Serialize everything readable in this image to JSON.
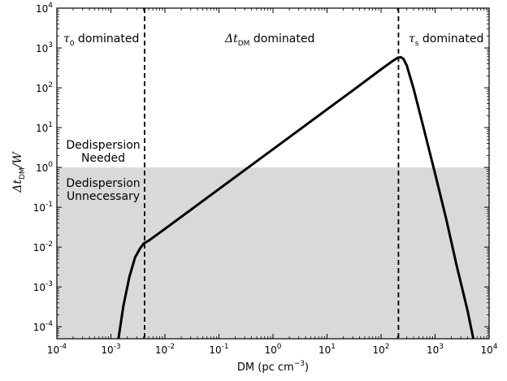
{
  "chart_data": {
    "type": "line",
    "xlabel": "DM (pc cm",
    "xlabel_sup": "−3",
    "xlabel_close": ")",
    "ylabel": "Δt",
    "ylabel_sub": "DM",
    "ylabel_tail": "/W",
    "x_scale": "log",
    "y_scale": "log",
    "xlim": [
      0.0001,
      10000
    ],
    "ylim": [
      5e-05,
      10000
    ],
    "x_ticks": [
      {
        "base": "10",
        "exp": "-4",
        "value": 0.0001
      },
      {
        "base": "10",
        "exp": "-3",
        "value": 0.001
      },
      {
        "base": "10",
        "exp": "-2",
        "value": 0.01
      },
      {
        "base": "10",
        "exp": "-1",
        "value": 0.1
      },
      {
        "base": "10",
        "exp": "0",
        "value": 1
      },
      {
        "base": "10",
        "exp": "1",
        "value": 10
      },
      {
        "base": "10",
        "exp": "2",
        "value": 100
      },
      {
        "base": "10",
        "exp": "3",
        "value": 1000
      },
      {
        "base": "10",
        "exp": "4",
        "value": 10000
      }
    ],
    "y_ticks": [
      {
        "base": "10",
        "exp": "-4",
        "value": 0.0001
      },
      {
        "base": "10",
        "exp": "-3",
        "value": 0.001
      },
      {
        "base": "10",
        "exp": "-2",
        "value": 0.01
      },
      {
        "base": "10",
        "exp": "-1",
        "value": 0.1
      },
      {
        "base": "10",
        "exp": "0",
        "value": 1
      },
      {
        "base": "10",
        "exp": "1",
        "value": 10
      },
      {
        "base": "10",
        "exp": "2",
        "value": 100
      },
      {
        "base": "10",
        "exp": "3",
        "value": 1000
      },
      {
        "base": "10",
        "exp": "4",
        "value": 10000
      }
    ],
    "series": [
      {
        "color": "#000000",
        "x": [
          0.00138,
          0.0017,
          0.0022,
          0.0028,
          0.0035,
          0.0041,
          0.005,
          0.008,
          0.03,
          0.3,
          3,
          30,
          100,
          160,
          200,
          230,
          260,
          300,
          400,
          600,
          1000,
          1600,
          2500,
          4000,
          5100
        ],
        "y": [
          5e-05,
          0.00033,
          0.0018,
          0.0055,
          0.0095,
          0.0125,
          0.0145,
          0.023,
          0.086,
          0.86,
          8.6,
          86,
          290,
          460,
          560,
          590,
          530,
          360,
          95,
          11,
          0.7,
          0.052,
          0.0035,
          0.00025,
          5e-05
        ]
      }
    ],
    "vlines": [
      {
        "x": 0.0042,
        "style": "dashed",
        "color": "#000000"
      },
      {
        "x": 210,
        "style": "dashed",
        "color": "#000000"
      }
    ],
    "shaded_region": {
      "y_from": 5e-05,
      "y_to": 1,
      "color": "#d9d9d9"
    },
    "annotations": [
      {
        "id": "tau0",
        "symbol": "τ",
        "sub": "0",
        "text": " dominated"
      },
      {
        "id": "dtdm",
        "symbol": "Δt",
        "sub": "DM",
        "text": " dominated"
      },
      {
        "id": "taus",
        "symbol": "τ",
        "sub": "s",
        "text": " dominated"
      },
      {
        "id": "needed",
        "lines": [
          "Dedispersion",
          "Needed"
        ]
      },
      {
        "id": "unnecessary",
        "lines": [
          "Dedispersion",
          "Unnecessary"
        ]
      }
    ]
  }
}
